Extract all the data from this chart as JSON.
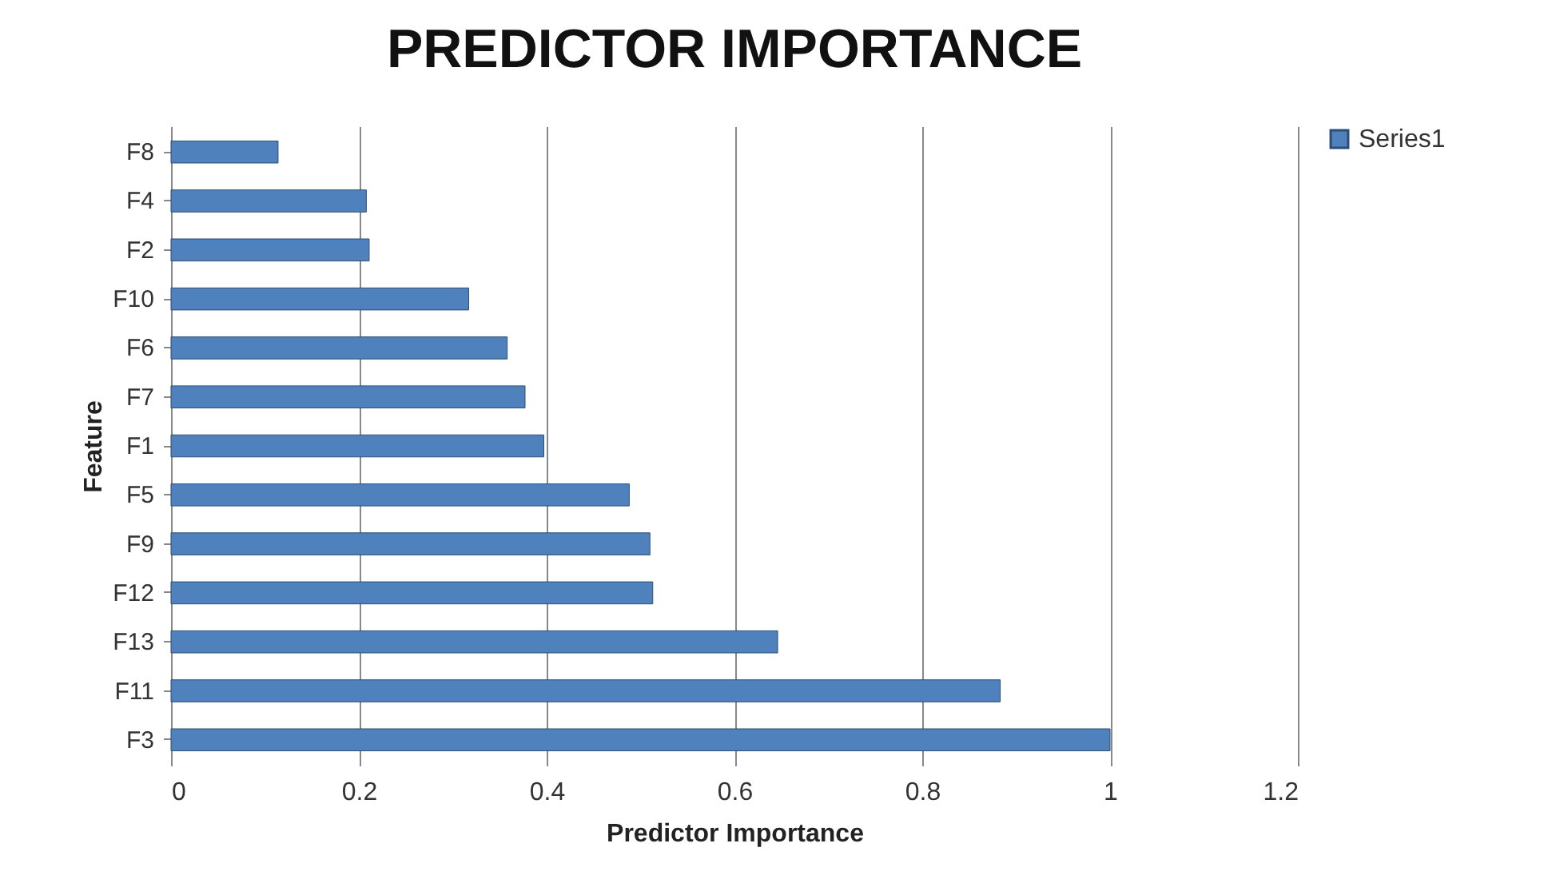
{
  "chart_data": {
    "type": "bar",
    "orientation": "horizontal",
    "title": "PREDICTOR IMPORTANCE",
    "xlabel": "Predictor Importance",
    "ylabel": "Feature",
    "categories": [
      "F8",
      "F4",
      "F2",
      "F10",
      "F6",
      "F7",
      "F1",
      "F5",
      "F9",
      "F12",
      "F13",
      "F11",
      "F3"
    ],
    "series": [
      {
        "name": "Series1",
        "color": "#4f81bd",
        "values": [
          0.114,
          0.208,
          0.211,
          0.317,
          0.358,
          0.377,
          0.397,
          0.488,
          0.51,
          0.513,
          0.646,
          0.883,
          1.0
        ]
      }
    ],
    "xlim": [
      0,
      1.2
    ],
    "xticks": [
      0,
      0.2,
      0.4,
      0.6,
      0.8,
      1,
      1.2
    ],
    "grid": "x",
    "legend": "right"
  }
}
